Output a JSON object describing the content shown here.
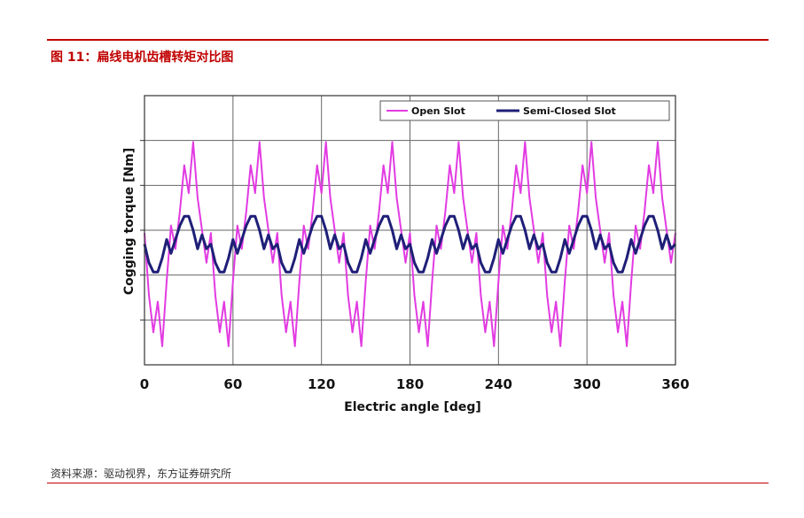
{
  "header": {
    "figure_title": "图 11：扁线电机齿槽转矩对比图"
  },
  "footer": {
    "source": "资料来源：驱动视界，东方证券研究所"
  },
  "colors": {
    "accent": "#c00000",
    "open_slot": "#e23be2",
    "semi_closed_slot": "#1f1f78"
  },
  "chart_data": {
    "type": "line",
    "xlabel": "Electric angle [deg]",
    "ylabel": "Cogging torque [Nm]",
    "xlim": [
      0,
      360
    ],
    "xticks": [
      "0",
      "60",
      "120",
      "180",
      "240",
      "300",
      "360"
    ],
    "grid": true,
    "legend_position": "top-right",
    "x": [
      0,
      3,
      6,
      9,
      12,
      15,
      18,
      21,
      24,
      27,
      30,
      33,
      36,
      39,
      42,
      45
    ],
    "period_deg": 45,
    "series": [
      {
        "name": "Open Slot",
        "color": "#e23be2",
        "values_one_period": [
          0.12,
          -0.55,
          -0.95,
          -0.62,
          -1.1,
          -0.4,
          0.2,
          -0.05,
          0.35,
          0.85,
          0.55,
          1.1,
          0.5,
          0.15,
          -0.2,
          0.12
        ]
      },
      {
        "name": "Semi-Closed Slot",
        "color": "#1f1f78",
        "values_one_period": [
          0.0,
          -0.2,
          -0.3,
          -0.3,
          -0.15,
          0.05,
          -0.1,
          0.05,
          0.2,
          0.3,
          0.3,
          0.15,
          -0.05,
          0.1,
          -0.05,
          0.0
        ]
      }
    ]
  }
}
